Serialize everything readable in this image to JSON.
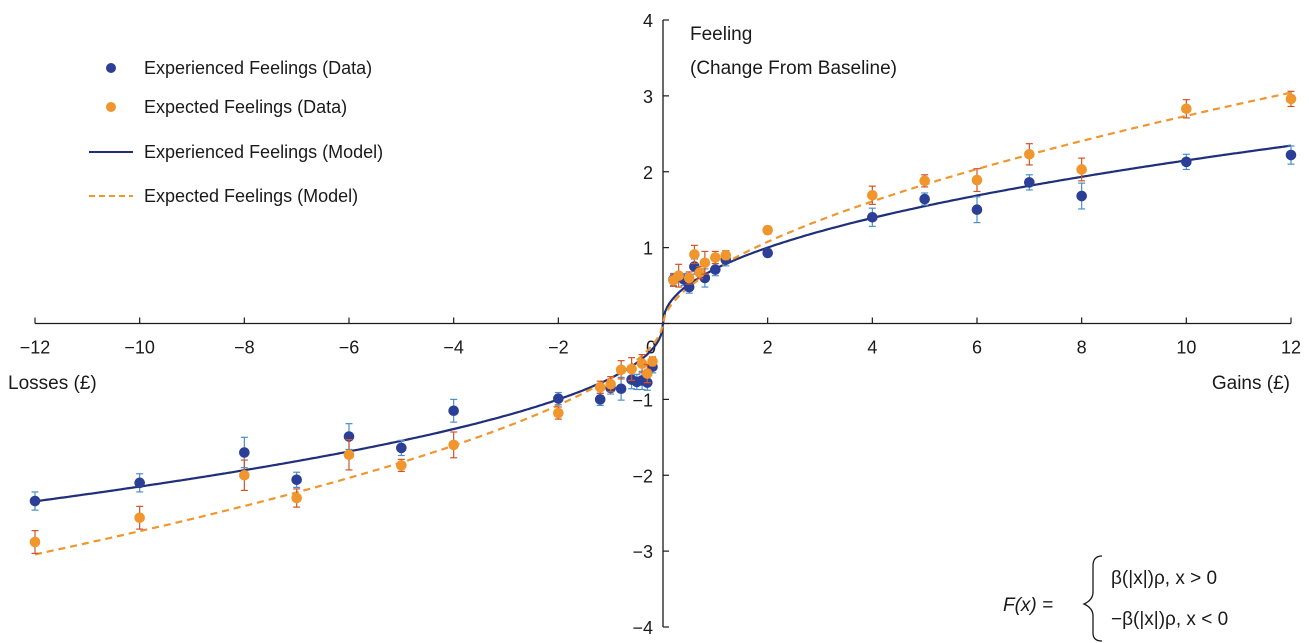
{
  "chart_data": {
    "type": "scatter",
    "x_label_left": "Losses (£)",
    "x_label_right": "Gains (£)",
    "y_label_lines": [
      "Feeling",
      "(Change From Baseline)"
    ],
    "xlim": [
      -12,
      12
    ],
    "ylim": [
      -4,
      4
    ],
    "x_ticks": [
      -12,
      -10,
      -8,
      -6,
      -4,
      -2,
      0,
      2,
      4,
      6,
      8,
      10,
      12
    ],
    "y_ticks": [
      -4,
      -3,
      -2,
      -1,
      0,
      1,
      2,
      3,
      4
    ],
    "grid": false,
    "legend_position": "top-left",
    "tick_labels": {
      "x": [
        "−12",
        "−10",
        "−8",
        "−6",
        "−4",
        "−2",
        "0",
        "2",
        "4",
        "6",
        "8",
        "10",
        "12"
      ],
      "y": [
        "−4",
        "−3",
        "−2",
        "−1",
        "0",
        "1",
        "2",
        "3",
        "4"
      ]
    },
    "series": [
      {
        "name": "Experienced Feelings (Data)",
        "kind": "points",
        "color": "#2b3f96",
        "error_color": "#4a90c8",
        "points": [
          [
            -12,
            -2.34,
            0.12
          ],
          [
            -10,
            -2.1,
            0.12
          ],
          [
            -8,
            -1.7,
            0.2
          ],
          [
            -7,
            -2.06,
            0.1
          ],
          [
            -6,
            -1.49,
            0.17
          ],
          [
            -5,
            -1.64,
            0.1
          ],
          [
            -4,
            -1.15,
            0.15
          ],
          [
            -2,
            -0.99,
            0.08
          ],
          [
            -1.2,
            -1.0,
            0.08
          ],
          [
            -1.0,
            -0.85,
            0.08
          ],
          [
            -0.8,
            -0.86,
            0.15
          ],
          [
            -0.6,
            -0.74,
            0.12
          ],
          [
            -0.5,
            -0.77,
            0.1
          ],
          [
            -0.4,
            -0.75,
            0.12
          ],
          [
            -0.3,
            -0.78,
            0.1
          ],
          [
            -0.2,
            -0.57,
            0.08
          ],
          [
            0.2,
            0.58,
            0.08
          ],
          [
            0.4,
            0.58,
            0.08
          ],
          [
            0.5,
            0.48,
            0.08
          ],
          [
            0.6,
            0.75,
            0.1
          ],
          [
            0.8,
            0.6,
            0.12
          ],
          [
            1.0,
            0.71,
            0.08
          ],
          [
            1.2,
            0.84,
            0.08
          ],
          [
            2,
            0.93,
            0.05
          ],
          [
            4,
            1.4,
            0.12
          ],
          [
            5,
            1.64,
            0.08
          ],
          [
            6,
            1.5,
            0.17
          ],
          [
            7,
            1.86,
            0.1
          ],
          [
            8,
            1.68,
            0.17
          ],
          [
            10,
            2.13,
            0.1
          ],
          [
            12,
            2.22,
            0.12
          ]
        ]
      },
      {
        "name": "Expected Feelings (Data)",
        "kind": "points",
        "color": "#f0962d",
        "error_color": "#d0542a",
        "points": [
          [
            -12,
            -2.88,
            0.15
          ],
          [
            -10,
            -2.56,
            0.15
          ],
          [
            -8,
            -2.0,
            0.2
          ],
          [
            -7,
            -2.3,
            0.12
          ],
          [
            -6,
            -1.73,
            0.2
          ],
          [
            -5,
            -1.87,
            0.08
          ],
          [
            -4,
            -1.6,
            0.17
          ],
          [
            -2,
            -1.18,
            0.08
          ],
          [
            -1.2,
            -0.84,
            0.08
          ],
          [
            -1.0,
            -0.8,
            0.1
          ],
          [
            -0.8,
            -0.61,
            0.12
          ],
          [
            -0.6,
            -0.6,
            0.15
          ],
          [
            -0.4,
            -0.53,
            0.12
          ],
          [
            -0.3,
            -0.66,
            0.12
          ],
          [
            -0.2,
            -0.5,
            0.06
          ],
          [
            0.2,
            0.57,
            0.08
          ],
          [
            0.3,
            0.63,
            0.15
          ],
          [
            0.5,
            0.6,
            0.08
          ],
          [
            0.6,
            0.91,
            0.12
          ],
          [
            0.7,
            0.67,
            0.08
          ],
          [
            0.8,
            0.8,
            0.15
          ],
          [
            1.0,
            0.87,
            0.08
          ],
          [
            1.2,
            0.9,
            0.06
          ],
          [
            2,
            1.23,
            0.05
          ],
          [
            4,
            1.69,
            0.12
          ],
          [
            5,
            1.88,
            0.08
          ],
          [
            6,
            1.89,
            0.15
          ],
          [
            7,
            2.23,
            0.14
          ],
          [
            8,
            2.03,
            0.15
          ],
          [
            10,
            2.83,
            0.12
          ],
          [
            12,
            2.96,
            0.1
          ]
        ]
      },
      {
        "name": "Experienced Feelings (Model)",
        "kind": "curve",
        "color": "#1f2f7a",
        "dashed": false,
        "beta": 0.72,
        "rho": 0.475
      },
      {
        "name": "Expected Feelings (Model)",
        "kind": "curve",
        "color": "#f0962d",
        "dashed": true,
        "beta": 0.72,
        "rho": 0.58
      }
    ],
    "annotation": {
      "lhs": "F(x) =",
      "case1": "β(|x|)ρ, x > 0",
      "case2": "−β(|x|)ρ, x < 0"
    }
  }
}
